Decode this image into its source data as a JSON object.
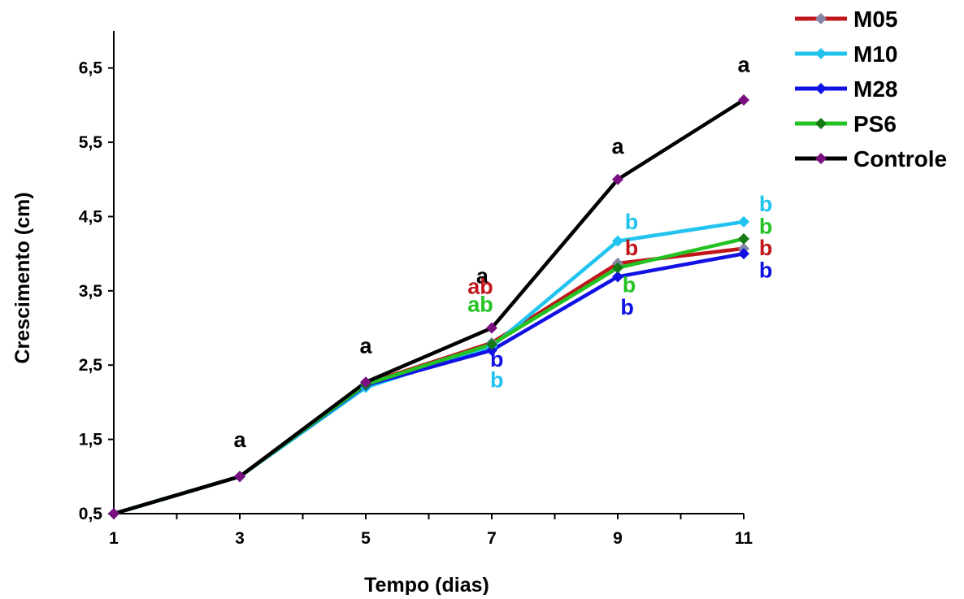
{
  "chart_data": {
    "type": "line",
    "title": "",
    "xlabel": "Tempo (dias)",
    "ylabel": "Crescimento (cm)",
    "x": [
      1,
      3,
      5,
      7,
      9,
      11
    ],
    "xticks": [
      "1",
      "3",
      "5",
      "7",
      "9",
      "11"
    ],
    "ylim": [
      0.5,
      7.0
    ],
    "yticks": [
      0.5,
      1.5,
      2.5,
      3.5,
      4.5,
      5.5,
      6.5
    ],
    "ytick_labels": [
      "0,5",
      "1,5",
      "2,5",
      "3,5",
      "4,5",
      "5,5",
      "6,5"
    ],
    "grid": false,
    "legend_position": "top-right",
    "series": [
      {
        "name": "M05",
        "line_color": "#c0161b",
        "marker_color": "#8585a8",
        "values": [
          0.5,
          1.0,
          2.25,
          2.8,
          3.87,
          4.07
        ]
      },
      {
        "name": "M10",
        "line_color": "#22c4ef",
        "marker_color": "#22c4ef",
        "values": [
          0.5,
          1.0,
          2.2,
          2.75,
          4.17,
          4.43
        ]
      },
      {
        "name": "M28",
        "line_color": "#1111e4",
        "marker_color": "#1111e4",
        "values": [
          0.5,
          1.0,
          2.23,
          2.7,
          3.69,
          4.0
        ]
      },
      {
        "name": "PS6",
        "line_color": "#22c322",
        "marker_color": "#157a15",
        "values": [
          0.5,
          1.0,
          2.24,
          2.78,
          3.81,
          4.2
        ]
      },
      {
        "name": "Controle",
        "line_color": "#000000",
        "marker_color": "#7a0f82",
        "values": [
          0.5,
          1.0,
          2.27,
          3.0,
          5.0,
          6.07
        ]
      }
    ],
    "annotations": [
      {
        "text": "a",
        "color": "#000000",
        "x": 3,
        "y": 1.4
      },
      {
        "text": "a",
        "color": "#000000",
        "x": 5,
        "y": 2.66
      },
      {
        "text": "a",
        "color": "#000000",
        "x": 6.85,
        "y": 3.6
      },
      {
        "text": "ab",
        "color": "#c0161b",
        "x": 6.82,
        "y": 3.46
      },
      {
        "text": "ab",
        "color": "#22c322",
        "x": 6.82,
        "y": 3.22
      },
      {
        "text": "b",
        "color": "#1111e4",
        "x": 7.08,
        "y": 2.48
      },
      {
        "text": "b",
        "color": "#22c4ef",
        "x": 7.08,
        "y": 2.2
      },
      {
        "text": "a",
        "color": "#000000",
        "x": 9.0,
        "y": 5.35
      },
      {
        "text": "b",
        "color": "#22c4ef",
        "x": 9.22,
        "y": 4.33
      },
      {
        "text": "b",
        "color": "#c0161b",
        "x": 9.22,
        "y": 3.98
      },
      {
        "text": "b",
        "color": "#22c322",
        "x": 9.18,
        "y": 3.48
      },
      {
        "text": "b",
        "color": "#1111e4",
        "x": 9.15,
        "y": 3.18
      },
      {
        "text": "a",
        "color": "#000000",
        "x": 11.0,
        "y": 6.45
      },
      {
        "text": "b",
        "color": "#22c4ef",
        "x": 11.35,
        "y": 4.57
      },
      {
        "text": "b",
        "color": "#22c322",
        "x": 11.35,
        "y": 4.27
      },
      {
        "text": "b",
        "color": "#c0161b",
        "x": 11.35,
        "y": 3.98
      },
      {
        "text": "b",
        "color": "#1111e4",
        "x": 11.35,
        "y": 3.68
      }
    ]
  }
}
